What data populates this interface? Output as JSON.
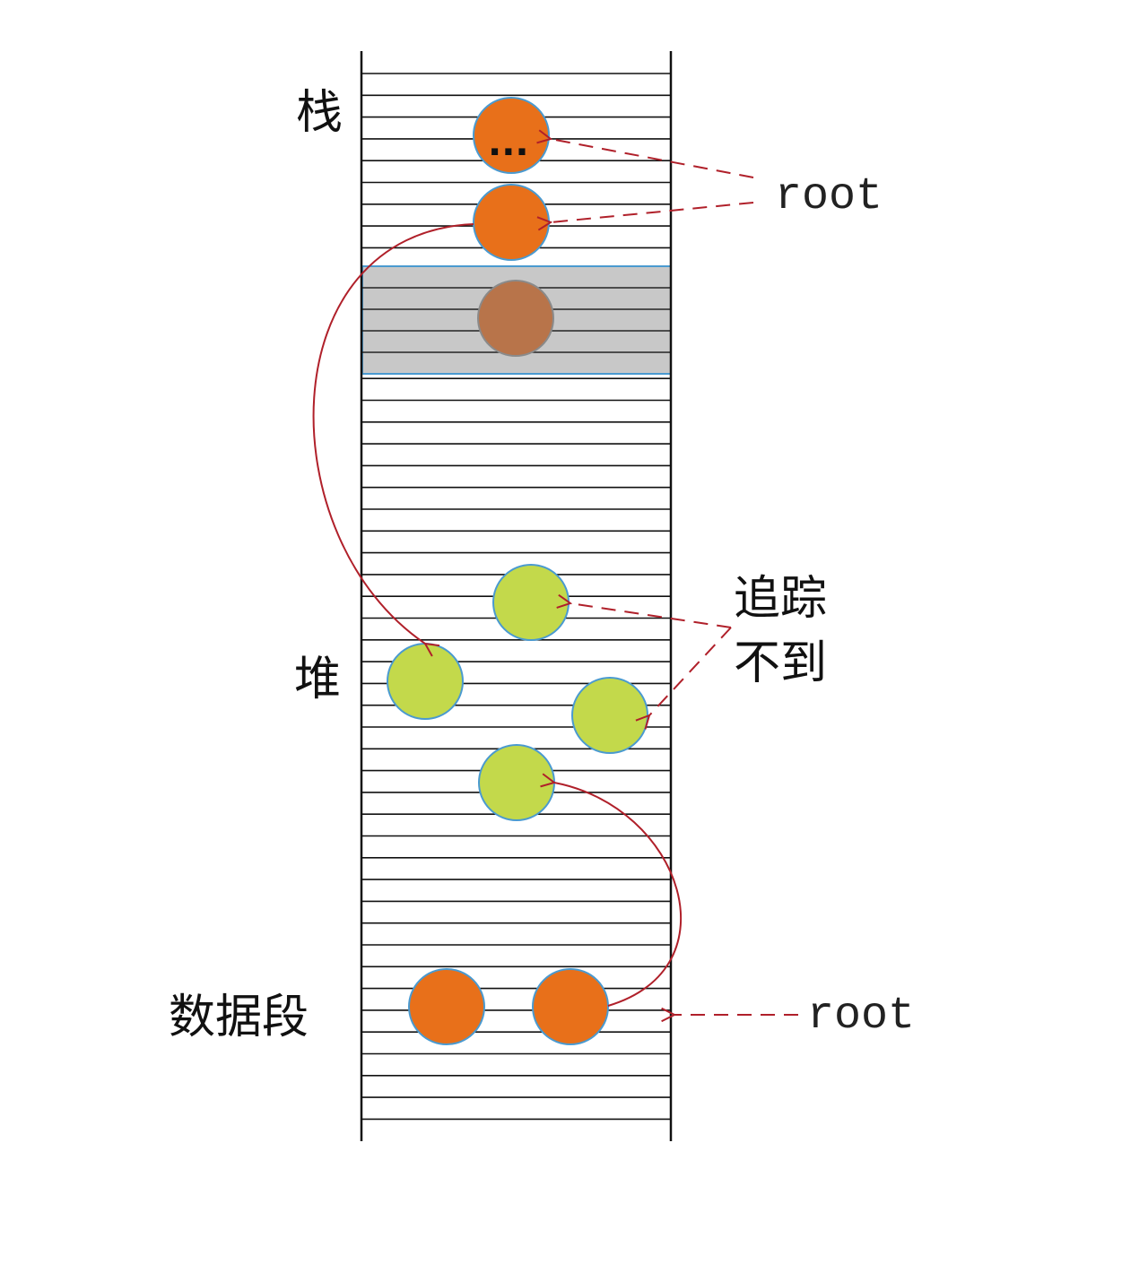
{
  "labels": {
    "stack": "栈",
    "heap": "堆",
    "data_segment": "数据段",
    "root_top": "root",
    "root_bottom": "root",
    "unreachable_line1": "追踪",
    "unreachable_line2": "不到",
    "ellipsis": "..."
  },
  "colors": {
    "root_object": "#e8701a",
    "heap_object": "#c3d94b",
    "freed_region": "#c8c8c8",
    "freed_object": "#b8744a",
    "arrow": "#b0202a",
    "stroke": "#4a9ad0"
  }
}
